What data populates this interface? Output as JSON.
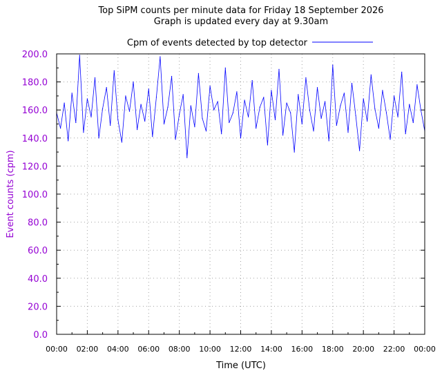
{
  "chart_data": {
    "type": "line",
    "title": "Top SiPM counts per minute data for Friday 18 September 2026",
    "subtitle": "Graph is updated every day at 9.30am",
    "xlabel": "Time (UTC)",
    "ylabel": "Event counts (cpm)",
    "ylim": [
      0,
      200
    ],
    "xlim": [
      "00:00",
      "24:00"
    ],
    "grid": true,
    "legend_position": "top",
    "x_tick_labels": [
      "00:00",
      "02:00",
      "04:00",
      "06:00",
      "08:00",
      "10:00",
      "12:00",
      "14:00",
      "16:00",
      "18:00",
      "20:00",
      "22:00",
      "00:00"
    ],
    "y_tick_labels": [
      "0.0",
      "20.0",
      "40.0",
      "60.0",
      "80.0",
      "100.0",
      "120.0",
      "140.0",
      "160.0",
      "180.0",
      "200.0"
    ],
    "series": [
      {
        "name": "Cpm of events detected by top detector",
        "color": "#0000ff",
        "sampling": "one point every 15 minutes (detail of per-minute noise approximated)",
        "x": [
          "00:00",
          "00:15",
          "00:30",
          "00:45",
          "01:00",
          "01:15",
          "01:30",
          "01:45",
          "02:00",
          "02:15",
          "02:30",
          "02:45",
          "03:00",
          "03:15",
          "03:30",
          "03:45",
          "04:00",
          "04:15",
          "04:30",
          "04:45",
          "05:00",
          "05:15",
          "05:30",
          "05:45",
          "06:00",
          "06:15",
          "06:30",
          "06:45",
          "07:00",
          "07:15",
          "07:30",
          "07:45",
          "08:00",
          "08:15",
          "08:30",
          "08:45",
          "09:00",
          "09:15",
          "09:30",
          "09:45",
          "10:00",
          "10:15",
          "10:30",
          "10:45",
          "11:00",
          "11:15",
          "11:30",
          "11:45",
          "12:00",
          "12:15",
          "12:30",
          "12:45",
          "13:00",
          "13:15",
          "13:30",
          "13:45",
          "14:00",
          "14:15",
          "14:30",
          "14:45",
          "15:00",
          "15:15",
          "15:30",
          "15:45",
          "16:00",
          "16:15",
          "16:30",
          "16:45",
          "17:00",
          "17:15",
          "17:30",
          "17:45",
          "18:00",
          "18:15",
          "18:30",
          "18:45",
          "19:00",
          "19:15",
          "19:30",
          "19:45",
          "20:00",
          "20:15",
          "20:30",
          "20:45",
          "21:00",
          "21:15",
          "21:30",
          "21:45",
          "22:00",
          "22:15",
          "22:30",
          "22:45",
          "23:00",
          "23:15",
          "23:30",
          "23:45",
          "24:00"
        ],
        "values": [
          158,
          147,
          165,
          138,
          172,
          151,
          199,
          144,
          168,
          155,
          183,
          140,
          161,
          176,
          149,
          188,
          153,
          137,
          170,
          159,
          180,
          146,
          164,
          152,
          175,
          141,
          169,
          198,
          150,
          162,
          184,
          139,
          157,
          171,
          126,
          163,
          148,
          186,
          154,
          145,
          177,
          160,
          166,
          143,
          190,
          151,
          158,
          173,
          140,
          167,
          155,
          181,
          147,
          162,
          169,
          135,
          174,
          153,
          189,
          142,
          165,
          158,
          130,
          171,
          150,
          183,
          160,
          145,
          176,
          154,
          166,
          138,
          192,
          149,
          163,
          172,
          144,
          179,
          156,
          131,
          168,
          152,
          185,
          161,
          147,
          174,
          158,
          139,
          170,
          155,
          187,
          143,
          164,
          151,
          178,
          160,
          145
        ]
      }
    ]
  }
}
